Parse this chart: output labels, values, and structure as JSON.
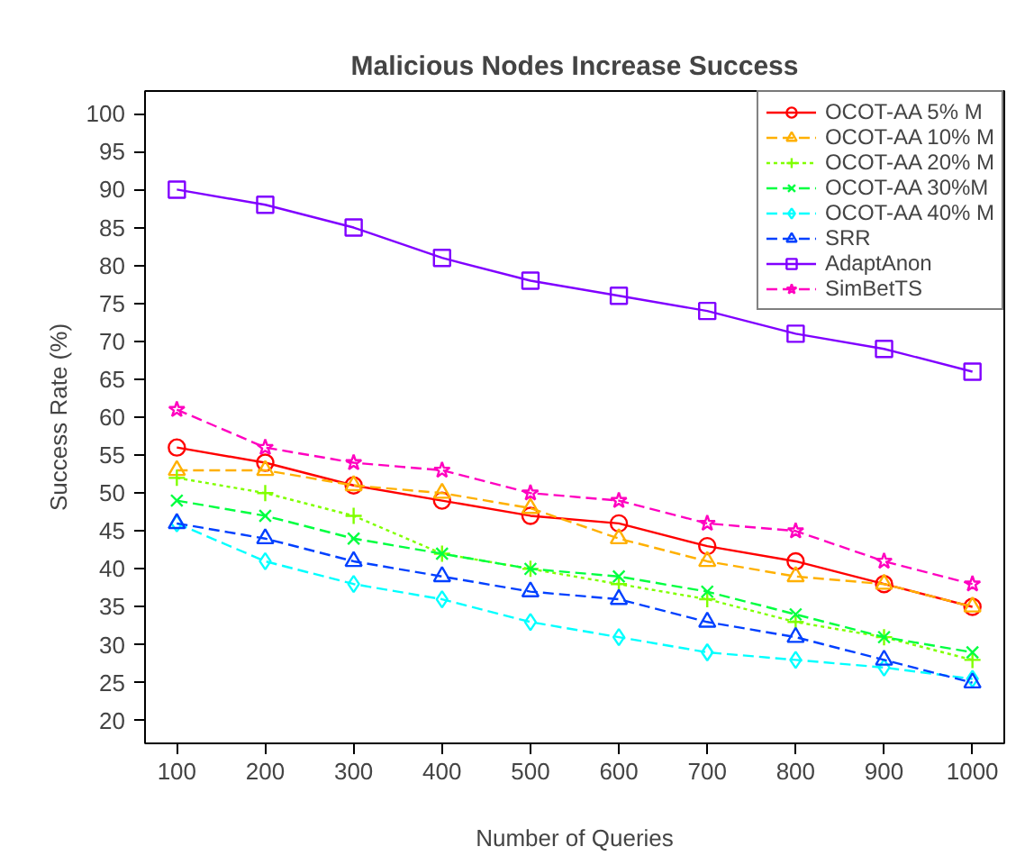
{
  "chart_data": {
    "type": "line",
    "title": "Malicious Nodes Increase Success",
    "xlabel": "Number of Queries",
    "ylabel": "Success Rate (%)",
    "x": [
      100,
      200,
      300,
      400,
      500,
      600,
      700,
      800,
      900,
      1000
    ],
    "xlim": [
      64,
      1036
    ],
    "xticks": [
      100,
      200,
      300,
      400,
      500,
      600,
      700,
      800,
      900,
      1000
    ],
    "ylim": [
      17,
      103
    ],
    "yticks": [
      20,
      25,
      30,
      35,
      40,
      45,
      50,
      55,
      60,
      65,
      70,
      75,
      80,
      85,
      90,
      95,
      100
    ],
    "grid": false,
    "legend": "top right",
    "series": [
      {
        "name": "OCOT-AA 5% M",
        "color": "#ff0000",
        "marker": "circle",
        "line_style": "solid",
        "values": [
          56,
          54,
          51,
          49,
          47,
          46,
          43,
          41,
          38,
          35
        ]
      },
      {
        "name": "OCOT-AA 10% M",
        "color": "#ffb000",
        "marker": "triangle",
        "line_style": "dashed",
        "values": [
          53,
          53,
          51,
          50,
          48,
          44,
          41,
          39,
          38,
          35
        ]
      },
      {
        "name": "OCOT-AA 20% M",
        "color": "#80ff00",
        "marker": "cross",
        "line_style": "dotted",
        "values": [
          52,
          50,
          47,
          42,
          40,
          38,
          36,
          33,
          31,
          28
        ]
      },
      {
        "name": "OCOT-AA 30%M",
        "color": "#00ff40",
        "marker": "x",
        "line_style": "dashed",
        "values": [
          49,
          47,
          44,
          42,
          40,
          39,
          37,
          34,
          31,
          29
        ]
      },
      {
        "name": "OCOT-AA 40% M",
        "color": "#00ffff",
        "marker": "diamond",
        "line_style": "dashed",
        "values": [
          46,
          41,
          38,
          36,
          33,
          31,
          29,
          28,
          27,
          25.5
        ]
      },
      {
        "name": "SRR",
        "color": "#0040ff",
        "marker": "triangle",
        "line_style": "dashed",
        "values": [
          46,
          44,
          41,
          39,
          37,
          36,
          33,
          31,
          28,
          25
        ]
      },
      {
        "name": "AdaptAnon",
        "color": "#8000ff",
        "marker": "square",
        "line_style": "solid",
        "values": [
          90,
          88,
          85,
          81,
          78,
          76,
          74,
          71,
          69,
          66
        ]
      },
      {
        "name": "SimBetTS",
        "color": "#ff00c0",
        "marker": "star",
        "line_style": "dashed",
        "values": [
          61,
          56,
          54,
          53,
          50,
          49,
          46,
          45,
          41,
          38
        ]
      }
    ]
  }
}
